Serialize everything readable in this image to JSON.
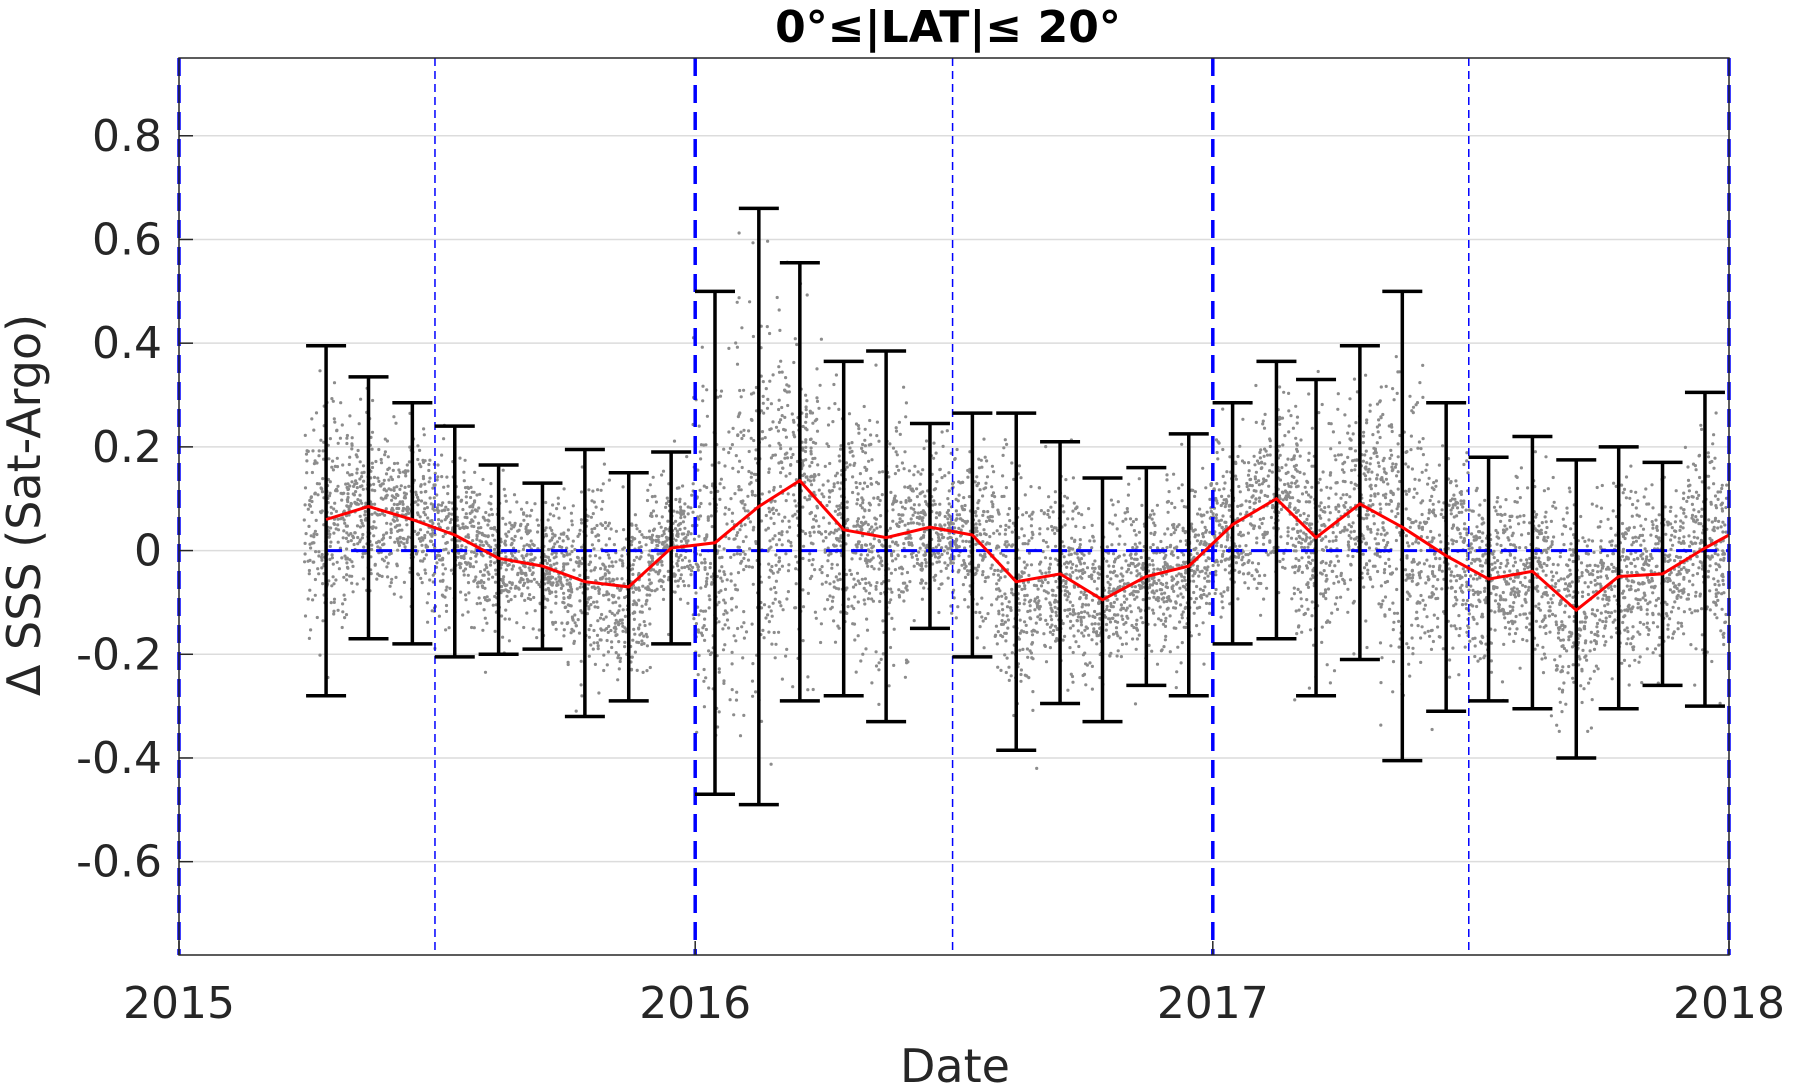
{
  "chart_data": {
    "type": "scatter",
    "title": "0°≤|LAT|≤ 20°",
    "xlabel": "Date",
    "ylabel": "Δ SSS (Sat-Argo)",
    "xlim": [
      "2015-01-01",
      "2018-01-01"
    ],
    "ylim": [
      -0.78,
      0.95
    ],
    "x_ticks": [
      "2015",
      "2016",
      "2017",
      "2018"
    ],
    "y_ticks": [
      "-0.6",
      "-0.4",
      "-0.2",
      "0",
      "0.2",
      "0.4",
      "0.6",
      "0.8"
    ],
    "grid": "horizontal",
    "reference_lines": {
      "year_boundaries": [
        "2015-01-01",
        "2016-01-01",
        "2017-01-01",
        "2018-01-01"
      ],
      "mid_year": [
        "2015-07-01",
        "2016-07-01",
        "2017-07-01"
      ],
      "zero_line_y": 0
    },
    "colors": {
      "scatter": "#8c8c8c",
      "mean_line": "#ff0000",
      "error_bars": "#000000",
      "reference": "#0000ff",
      "grid": "#dcdcdc"
    },
    "series": [
      {
        "type": "errorbar",
        "dates": [
          "2015-04-15",
          "2015-05-15",
          "2015-06-15",
          "2015-07-15",
          "2015-08-15",
          "2015-09-15",
          "2015-10-15",
          "2015-11-15",
          "2015-12-15",
          "2016-01-15",
          "2016-02-15",
          "2016-03-15",
          "2016-04-15",
          "2016-05-15",
          "2016-06-15",
          "2016-07-15",
          "2016-08-15",
          "2016-09-15",
          "2016-10-15",
          "2016-11-15",
          "2016-12-15",
          "2017-01-15",
          "2017-02-15",
          "2017-03-15",
          "2017-04-15",
          "2017-05-15",
          "2017-06-15",
          "2017-07-15",
          "2017-08-15",
          "2017-09-15",
          "2017-10-15",
          "2017-11-15",
          "2017-12-15"
        ],
        "mean": [
          0.06,
          0.085,
          0.06,
          0.03,
          -0.015,
          -0.03,
          -0.06,
          -0.07,
          0.005,
          0.015,
          0.085,
          0.135,
          0.04,
          0.025,
          0.045,
          0.03,
          -0.06,
          -0.045,
          -0.095,
          -0.05,
          -0.03,
          0.05,
          0.1,
          0.025,
          0.09,
          0.045,
          -0.01,
          -0.055,
          -0.04,
          -0.115,
          -0.05,
          -0.045,
          0.005
        ],
        "upper": [
          0.395,
          0.335,
          0.285,
          0.24,
          0.165,
          0.13,
          0.195,
          0.15,
          0.19,
          0.5,
          0.66,
          0.555,
          0.365,
          0.385,
          0.245,
          0.265,
          0.265,
          0.21,
          0.14,
          0.16,
          0.225,
          0.285,
          0.365,
          0.33,
          0.395,
          0.5,
          0.285,
          0.18,
          0.22,
          0.175,
          0.2,
          0.17,
          0.305
        ],
        "lower": [
          -0.28,
          -0.17,
          -0.18,
          -0.205,
          -0.2,
          -0.19,
          -0.32,
          -0.29,
          -0.18,
          -0.47,
          -0.49,
          -0.29,
          -0.28,
          -0.33,
          -0.15,
          -0.205,
          -0.385,
          -0.295,
          -0.33,
          -0.26,
          -0.28,
          -0.18,
          -0.17,
          -0.28,
          -0.21,
          -0.405,
          -0.31,
          -0.29,
          -0.305,
          -0.4,
          -0.305,
          -0.26,
          -0.3
        ]
      },
      {
        "type": "line",
        "dates": [
          "2015-04-15",
          "2015-05-15",
          "2015-06-15",
          "2015-07-15",
          "2015-08-15",
          "2015-09-15",
          "2015-10-15",
          "2015-11-15",
          "2015-12-15",
          "2016-01-15",
          "2016-02-15",
          "2016-03-15",
          "2016-04-15",
          "2016-05-15",
          "2016-06-15",
          "2016-07-15",
          "2016-08-15",
          "2016-09-15",
          "2016-10-15",
          "2016-11-15",
          "2016-12-15",
          "2017-01-15",
          "2017-02-15",
          "2017-03-15",
          "2017-04-15",
          "2017-05-15",
          "2017-06-15",
          "2017-07-15",
          "2017-08-15",
          "2017-09-15",
          "2017-10-15",
          "2017-11-15",
          "2017-12-15",
          "2018-01-01"
        ],
        "values": [
          0.06,
          0.085,
          0.06,
          0.03,
          -0.015,
          -0.03,
          -0.06,
          -0.07,
          0.005,
          0.015,
          0.085,
          0.135,
          0.04,
          0.025,
          0.045,
          0.03,
          -0.06,
          -0.045,
          -0.095,
          -0.05,
          -0.03,
          0.05,
          0.1,
          0.025,
          0.09,
          0.045,
          -0.01,
          -0.055,
          -0.04,
          -0.115,
          -0.05,
          -0.045,
          0.005,
          0.03
        ]
      }
    ]
  }
}
